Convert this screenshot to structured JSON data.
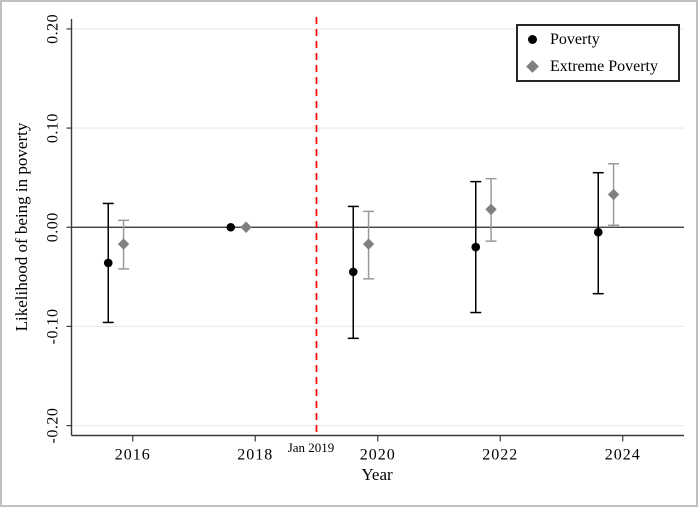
{
  "chart_data": {
    "type": "scatter",
    "subtype": "event-study-coefficient-plot",
    "title": "",
    "xlabel": "Year",
    "ylabel": "Likelihood of being in poverty",
    "xlim": [
      2015,
      2025
    ],
    "ylim": [
      -0.21,
      0.21
    ],
    "x_ticks": [
      2016,
      2018,
      2020,
      2022,
      2024
    ],
    "y_ticks": [
      {
        "value": 0.2,
        "label": "0.20"
      },
      {
        "value": 0.1,
        "label": "0.10"
      },
      {
        "value": 0.0,
        "label": "0.00"
      },
      {
        "value": -0.1,
        "label": "-0.10"
      },
      {
        "value": -0.2,
        "label": "-0.20"
      }
    ],
    "grid": true,
    "legend_position": "top-right",
    "zero_line": {
      "value": 0,
      "color": "#2b2b2b"
    },
    "vline": {
      "x": 2019,
      "label": "Jan 2019",
      "color": "#fe0000",
      "style": "dashed"
    },
    "legend": {
      "entries": [
        {
          "label": "Poverty",
          "marker": "circle",
          "color": "#000000"
        },
        {
          "label": "Extreme Poverty",
          "marker": "diamond",
          "color": "#808080"
        }
      ]
    },
    "series": [
      {
        "name": "Poverty",
        "marker": "circle",
        "color": "#000000",
        "ci_color": "#000000",
        "points": [
          {
            "x": 2015.6,
            "y": -0.036,
            "lo": -0.096,
            "hi": 0.024
          },
          {
            "x": 2017.6,
            "y": 0.0,
            "lo": null,
            "hi": null
          },
          {
            "x": 2019.6,
            "y": -0.045,
            "lo": -0.112,
            "hi": 0.021
          },
          {
            "x": 2021.6,
            "y": -0.02,
            "lo": -0.086,
            "hi": 0.046
          },
          {
            "x": 2023.6,
            "y": -0.005,
            "lo": -0.067,
            "hi": 0.055
          }
        ]
      },
      {
        "name": "Extreme Poverty",
        "marker": "diamond",
        "color": "#808080",
        "ci_color": "#9a9a9a",
        "points": [
          {
            "x": 2015.85,
            "y": -0.017,
            "lo": -0.042,
            "hi": 0.007
          },
          {
            "x": 2017.85,
            "y": 0.0,
            "lo": null,
            "hi": null
          },
          {
            "x": 2019.85,
            "y": -0.017,
            "lo": -0.052,
            "hi": 0.016
          },
          {
            "x": 2021.85,
            "y": 0.018,
            "lo": -0.014,
            "hi": 0.049
          },
          {
            "x": 2023.85,
            "y": 0.033,
            "lo": 0.002,
            "hi": 0.064
          }
        ]
      }
    ]
  },
  "colors": {
    "background": "#ffffff",
    "frame_border": "#bfbfbf",
    "grid": "#e9e9e9",
    "axis": "#3a3a3a",
    "text": "#000000"
  }
}
